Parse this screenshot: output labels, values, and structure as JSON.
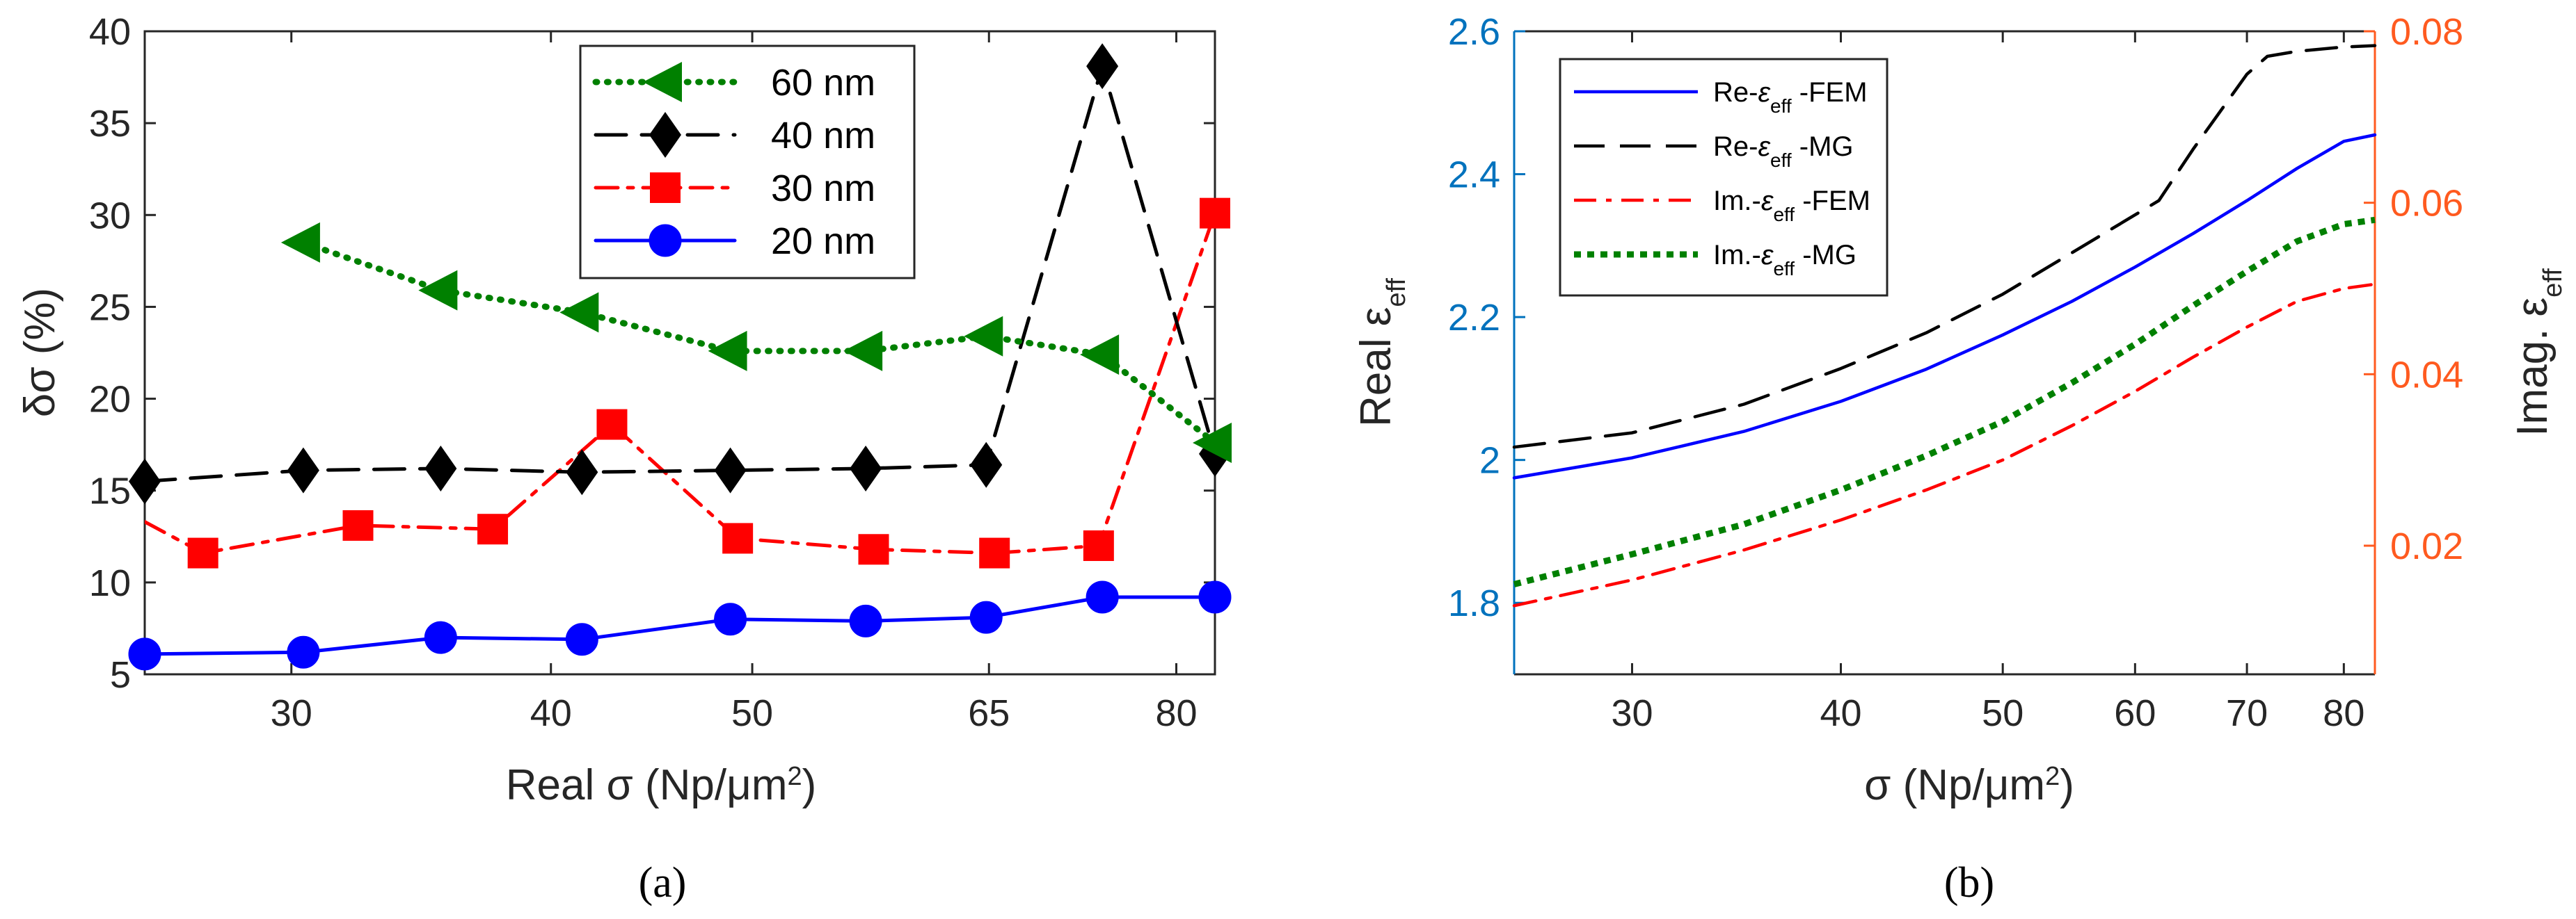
{
  "figure": {
    "panel_a_label": "(a)",
    "panel_b_label": "(b)"
  },
  "chart_data": [
    {
      "type": "line",
      "panel": "a",
      "title": "",
      "xlabel": "Real σ (Np/μm",
      "xlabel_sup": "2",
      "xlabel_end": ")",
      "ylabel": "δσ (%)",
      "xscale": "log",
      "xlim": [
        25.5,
        83.5
      ],
      "ylim": [
        5,
        40
      ],
      "xticks": [
        30,
        40,
        50,
        65,
        80
      ],
      "xtick_labels": [
        "30",
        "40",
        "50",
        "65",
        "80"
      ],
      "yticks": [
        5,
        10,
        15,
        20,
        25,
        30,
        35,
        40
      ],
      "ytick_labels": [
        "5",
        "10",
        "15",
        "20",
        "25",
        "30",
        "35",
        "40"
      ],
      "legend_position": "top-center",
      "series": [
        {
          "name": "60 nm",
          "color": "#008000",
          "dash": "dot",
          "marker": "triangle-left",
          "x": [
            30.4,
            35.4,
            41.4,
            48.8,
            56.7,
            64.8,
            73.7,
            83.5
          ],
          "y": [
            28.5,
            25.9,
            24.7,
            22.6,
            22.6,
            23.4,
            22.4,
            17.6
          ]
        },
        {
          "name": "40 nm",
          "color": "#000000",
          "dash": "dash",
          "marker": "diamond",
          "x": [
            25.5,
            30.4,
            35.4,
            41.4,
            48.8,
            56.7,
            64.8,
            73.7,
            83.5
          ],
          "y": [
            15.5,
            16.1,
            16.2,
            16.0,
            16.1,
            16.2,
            16.4,
            38.1,
            17.0
          ],
          "marker_x": [
            25.5,
            30.4,
            35.4,
            41.4,
            48.8,
            56.7,
            64.8,
            73.7,
            83.5
          ]
        },
        {
          "name": "30 nm",
          "color": "#ff0000",
          "dash": "dashdot",
          "marker": "square",
          "x": [
            25.5,
            27.2,
            32.3,
            37.5,
            42.8,
            49.2,
            57.2,
            65.4,
            73.4,
            83.5
          ],
          "y": [
            13.3,
            11.6,
            13.1,
            12.9,
            18.6,
            12.4,
            11.8,
            11.6,
            12.0,
            30.1
          ],
          "marker_x": [
            27.2,
            32.3,
            37.5,
            42.8,
            49.2,
            57.2,
            65.4,
            73.4,
            83.5
          ]
        },
        {
          "name": "20 nm",
          "color": "#0000ff",
          "dash": "solid",
          "marker": "circle",
          "x": [
            25.5,
            30.4,
            35.4,
            41.4,
            48.8,
            56.7,
            64.8,
            73.7,
            83.5
          ],
          "y": [
            6.1,
            6.2,
            7.0,
            6.9,
            8.0,
            7.9,
            8.1,
            9.2,
            9.2
          ]
        }
      ]
    },
    {
      "type": "line",
      "panel": "b",
      "title": "",
      "xlabel": "σ (Np/μm",
      "xlabel_sup": "2",
      "xlabel_end": ")",
      "ylabel_left": "Real ε",
      "ylabel_left_sub": "eff",
      "ylabel_right": "Imag. ε",
      "ylabel_right_sub": "eff",
      "xscale": "log",
      "xlim": [
        25.5,
        83.5
      ],
      "ylim_left": [
        1.7,
        2.6
      ],
      "ylim_right": [
        0.005,
        0.08
      ],
      "xticks": [
        30,
        40,
        50,
        60,
        70,
        80
      ],
      "xtick_labels": [
        "30",
        "40",
        "50",
        "60",
        "70",
        "80"
      ],
      "yticks_left": [
        1.8,
        2.0,
        2.2,
        2.4,
        2.6
      ],
      "ytick_labels_left": [
        "1.8",
        "2",
        "2.2",
        "2.4",
        "2.6"
      ],
      "yticks_right": [
        0.02,
        0.04,
        0.06,
        0.08
      ],
      "ytick_labels_right": [
        "0.02",
        "0.04",
        "0.06",
        "0.08"
      ],
      "left_axis_color": "#0072bd",
      "right_axis_color": "#ff5a1f",
      "legend_position": "top-left",
      "series": [
        {
          "name_prefix": "Re-",
          "name_sym": "ε",
          "name_sub": "eff",
          "name_suffix": " -FEM",
          "color": "#0000ff",
          "dash": "solid",
          "axis": "left",
          "x": [
            25.5,
            30,
            35,
            40,
            45,
            50,
            55,
            60,
            65,
            70,
            75,
            80,
            83.5
          ],
          "y": [
            1.975,
            2.003,
            2.04,
            2.082,
            2.127,
            2.175,
            2.222,
            2.27,
            2.317,
            2.363,
            2.408,
            2.446,
            2.455
          ]
        },
        {
          "name_prefix": "Re-",
          "name_sym": "ε",
          "name_sub": "eff",
          "name_suffix": " -MG",
          "color": "#000000",
          "dash": "dash",
          "axis": "left",
          "x": [
            25.5,
            30,
            35,
            40,
            45,
            50,
            55,
            60,
            62,
            65,
            70,
            72,
            75,
            80,
            83.5
          ],
          "y": [
            2.018,
            2.038,
            2.078,
            2.128,
            2.178,
            2.232,
            2.29,
            2.343,
            2.363,
            2.435,
            2.54,
            2.565,
            2.572,
            2.578,
            2.58
          ]
        },
        {
          "name_prefix": "Im.-",
          "name_sym": "ε",
          "name_sub": "eff",
          "name_suffix": " -FEM",
          "color": "#ff0000",
          "dash": "dashdot",
          "axis": "right",
          "x": [
            25.5,
            30,
            35,
            40,
            45,
            50,
            55,
            60,
            65,
            70,
            75,
            80,
            83.5
          ],
          "y": [
            0.013,
            0.016,
            0.0195,
            0.023,
            0.0265,
            0.03,
            0.034,
            0.038,
            0.042,
            0.0455,
            0.0485,
            0.05,
            0.0505
          ]
        },
        {
          "name_prefix": "Im.-",
          "name_sym": "ε",
          "name_sub": "eff",
          "name_suffix": " -MG",
          "color": "#008000",
          "dash": "dot",
          "axis": "right",
          "x": [
            25.5,
            30,
            35,
            40,
            45,
            50,
            55,
            60,
            65,
            70,
            75,
            80,
            83.5
          ],
          "y": [
            0.0155,
            0.019,
            0.0225,
            0.0265,
            0.0305,
            0.0345,
            0.039,
            0.0435,
            0.048,
            0.052,
            0.0555,
            0.0575,
            0.058
          ]
        }
      ]
    }
  ]
}
